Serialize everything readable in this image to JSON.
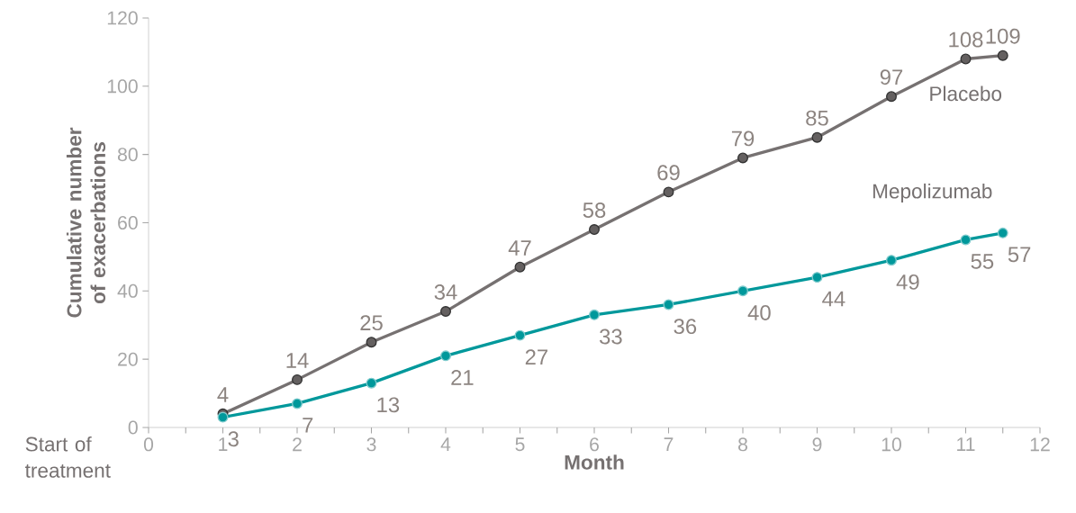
{
  "chart_data": {
    "type": "line",
    "xlabel": "Month",
    "ylabel": "Cumulative number of exacerbations",
    "annotations": [
      "Start of treatment"
    ],
    "series": [
      {
        "name": "Placebo",
        "color": "#767171",
        "x": [
          1,
          2,
          3,
          4,
          5,
          6,
          7,
          8,
          9,
          10,
          11,
          11.5
        ],
        "values": [
          4,
          14,
          25,
          34,
          47,
          58,
          69,
          79,
          85,
          97,
          108,
          109
        ]
      },
      {
        "name": "Mepolizumab",
        "color": "#00989b",
        "x": [
          1,
          2,
          3,
          4,
          5,
          6,
          7,
          8,
          9,
          10,
          11,
          11.5
        ],
        "values": [
          3,
          7,
          13,
          21,
          27,
          33,
          36,
          40,
          44,
          49,
          55,
          57
        ]
      }
    ],
    "xlim": [
      0,
      12
    ],
    "ylim": [
      0,
      120
    ],
    "xticks": [
      0,
      {
        "value": 0.5,
        "label": null
      },
      1,
      {
        "value": 1.5,
        "label": null
      },
      2,
      {
        "value": 2.5,
        "label": null
      },
      3,
      {
        "value": 3.5,
        "label": null
      },
      4,
      {
        "value": 4.5,
        "label": null
      },
      5,
      {
        "value": 5.5,
        "label": null
      },
      6,
      {
        "value": 6.5,
        "label": null
      },
      7,
      {
        "value": 7.5,
        "label": null
      },
      8,
      {
        "value": 8.5,
        "label": null
      },
      9,
      {
        "value": 9.5,
        "label": null
      },
      10,
      {
        "value": 10.5,
        "label": null
      },
      11,
      {
        "value": 11.5,
        "label": null
      },
      12
    ],
    "yticks": [
      0,
      20,
      40,
      60,
      80,
      100,
      120
    ],
    "data_labels": true,
    "marker": "circle",
    "line_style": "solid",
    "legend": false,
    "grid": false
  }
}
